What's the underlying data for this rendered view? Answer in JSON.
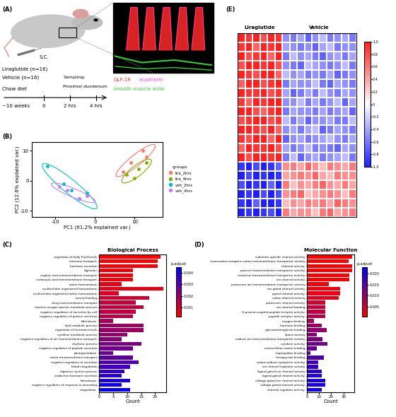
{
  "diagram": {
    "panel": "(A)",
    "route": "S.C.",
    "groups": [
      "Liraglutide (n=16)",
      "Vehicle (n=16)"
    ],
    "diet": "Chow diet",
    "duration": "~10 weeks",
    "timepoints": [
      "0",
      "2 hrs",
      "4 hrs"
    ],
    "sampling": [
      "Sampling:",
      "Proximal duodenum"
    ],
    "stain_legend": [
      {
        "name": "GLP-1R",
        "color": "#ff2a2a"
      },
      {
        "name": "ecadherin",
        "color": "#ff40ff"
      },
      {
        "name": "smooth muscle actin",
        "color": "#33cc33"
      }
    ]
  },
  "chart_data": [
    {
      "panel": "(B)",
      "type": "scatter",
      "xlabel": "PC1 (61.2% explained var.)",
      "ylabel": "PC2 (12.6% explained var.)",
      "xlim": [
        -16,
        17
      ],
      "ylim": [
        -12,
        13
      ],
      "xticks": [
        -10,
        0,
        10
      ],
      "yticks": [
        -10,
        0,
        10
      ],
      "grid": false,
      "legend": "right",
      "legend_title": "groups",
      "marker": "circle",
      "series": [
        {
          "name": "lira_2hrs",
          "color": "#F8766D",
          "x": [
            12,
            7,
            9,
            13
          ],
          "values": [
            10,
            3,
            6,
            8
          ]
        },
        {
          "name": "lira_4hrs",
          "color": "#7CAE00",
          "x": [
            8,
            11,
            13,
            10
          ],
          "values": [
            2,
            4,
            6,
            1
          ]
        },
        {
          "name": "veh_2hrs",
          "color": "#00BFC4",
          "x": [
            -12,
            -8,
            -4,
            -6,
            -2
          ],
          "values": [
            5,
            -1,
            -6,
            -3,
            -4
          ]
        },
        {
          "name": "veh_4hrs",
          "color": "#C77CFF",
          "x": [
            -7,
            -4,
            -2,
            -9
          ],
          "values": [
            -3,
            -6,
            -5,
            -2
          ]
        }
      ]
    },
    {
      "panel": "(C)",
      "type": "bar",
      "orientation": "horizontal",
      "title": "Biological Process",
      "xlabel": "Count",
      "xlim": [
        0,
        24
      ],
      "xticks": [
        0,
        5,
        10,
        15,
        20
      ],
      "categories": [
        "regulation of body fluid levels",
        "hormone transport",
        "hormone secretion",
        "digestion",
        "organic acid transmembrane transport",
        "carboxylic acid transmembrane transport",
        "water homeostasis",
        "multicellular organismal homeostasis",
        "multicellular organismal water homeostasis",
        "wound healing",
        "drug transmembrane transport",
        "reactive oxygen species metabolic process",
        "negative regulation of secretion by cell",
        "negative regulation of protein secretion",
        "fibrinolysis",
        "lipid catabolic process",
        "regulation of hormone levels",
        "cytokine metabolic process",
        "negative regulation of ion transmembrane transport",
        "rhythmic process",
        "negative regulation of peptide secretion",
        "photoperiodism",
        "anion transmembrane transport",
        "negative regulation of secretion",
        "blood coagulation",
        "digestive system process",
        "endocrine hormone secretion",
        "hemostasis",
        "negative regulation of response to wounding",
        "coagulation"
      ],
      "values": [
        22,
        21,
        21,
        12,
        12,
        12,
        8,
        23,
        7,
        18,
        13,
        16,
        13,
        12,
        5,
        16,
        16,
        10,
        8,
        15,
        12,
        5,
        12,
        14,
        11,
        9,
        8,
        11,
        8,
        11
      ],
      "p_adjust": [
        0.0002,
        0.0002,
        0.0003,
        0.0004,
        0.0004,
        0.0004,
        0.0005,
        0.0006,
        0.0008,
        0.001,
        0.0011,
        0.0012,
        0.0013,
        0.0014,
        0.0016,
        0.0018,
        0.0019,
        0.002,
        0.0022,
        0.0024,
        0.0026,
        0.0028,
        0.003,
        0.0032,
        0.0034,
        0.0036,
        0.0038,
        0.004,
        0.0042,
        0.0044
      ],
      "colorbar_title": "p.adjust",
      "color_range": [
        0.0002,
        0.0045
      ],
      "color_ticks": [
        0.001,
        0.002,
        0.003,
        0.004
      ]
    },
    {
      "panel": "(D)",
      "type": "bar",
      "orientation": "horizontal",
      "title": "Molecular Function",
      "xlabel": "Count",
      "xlim": [
        0,
        39
      ],
      "xticks": [
        0,
        10,
        20,
        30
      ],
      "categories": [
        "substrate-specific channel activity",
        "monovalent inorganic cation transmembrane transporter activity",
        "channel activity",
        "passive transmembrane transporter activity",
        "metal ion transmembrane transporter activity",
        "ion channel activity",
        "potassium ion transmembrane transporter activity",
        "ion gated channel activity",
        "gated channel activity",
        "cation channel activity",
        "potassium channel activity",
        "ion channel binding",
        "G-protein-coupled peptide receptor activity",
        "peptide receptor activity",
        "oxygen binding",
        "hormone binding",
        "glycosaminoglycan binding",
        "lipase activity",
        "sodium ion transmembrane transporter activity",
        "cytokine activity",
        "extracellular matrix binding",
        "haptoglobin binding",
        "tetrapyrrole binding",
        "solute:sodium symporter activity",
        "ion channel regulator activity",
        "ligand-gated ion channel activity",
        "ligand-gated channel activity",
        "voltage-gated ion channel activity",
        "voltage-gated channel activity",
        "channel regulator activity"
      ],
      "values": [
        37,
        34,
        37,
        37,
        35,
        35,
        18,
        27,
        27,
        26,
        15,
        15,
        15,
        15,
        6,
        12,
        16,
        8,
        13,
        17,
        8,
        3,
        14,
        9,
        9,
        12,
        12,
        15,
        15,
        12
      ],
      "p_adjust": [
        0.0003,
        0.0003,
        0.0004,
        0.0004,
        0.0005,
        0.0006,
        0.001,
        0.0015,
        0.002,
        0.003,
        0.004,
        0.005,
        0.006,
        0.007,
        0.008,
        0.009,
        0.01,
        0.011,
        0.012,
        0.013,
        0.014,
        0.015,
        0.016,
        0.017,
        0.018,
        0.019,
        0.02,
        0.021,
        0.021,
        0.022
      ],
      "colorbar_title": "p.adjust",
      "color_range": [
        0.0003,
        0.023
      ],
      "color_ticks": [
        0.005,
        {
          "value": 0.01,
          "label": "0.010"
        },
        0.015,
        {
          "value": 0.02,
          "label": "0.020"
        }
      ]
    },
    {
      "panel": "(E)",
      "type": "heatmap",
      "tick_labels": false,
      "column_groups": [
        {
          "name": "Liraglutide",
          "count": 6
        },
        {
          "name": "Vehicle",
          "count": 10
        }
      ],
      "color_range": [
        -1,
        1
      ],
      "color_ticks": [
        {
          "value": 1,
          "label": "1.0"
        },
        0.8,
        0.6,
        0.4,
        0.2,
        0,
        -0.2,
        -0.4,
        -0.6,
        -0.8,
        {
          "value": -1,
          "label": "-1.0"
        }
      ],
      "cells": [
        [
          1.1,
          0.9,
          1.0,
          0.8,
          1.2,
          0.9,
          -0.5,
          -0.6,
          -0.4,
          -0.7,
          -0.5,
          -0.3,
          -0.6,
          -0.5,
          -0.4,
          -0.6
        ],
        [
          0.9,
          1.0,
          0.7,
          1.1,
          0.9,
          1.0,
          -0.4,
          -0.5,
          -0.6,
          -0.5,
          -0.7,
          -0.4,
          -0.3,
          -0.6,
          -0.5,
          -0.5
        ],
        [
          1.0,
          0.8,
          0.9,
          1.0,
          0.7,
          1.1,
          -0.6,
          -0.3,
          -0.5,
          -0.4,
          -0.6,
          -0.7,
          -0.5,
          -0.4,
          -0.6,
          -0.4
        ],
        [
          0.8,
          1.1,
          1.0,
          0.9,
          1.0,
          0.8,
          -0.5,
          -0.6,
          -0.7,
          -0.3,
          -0.4,
          -0.5,
          -0.6,
          -0.5,
          -0.3,
          -0.6
        ],
        [
          1.2,
          0.9,
          0.8,
          1.0,
          1.1,
          0.7,
          -0.3,
          -0.5,
          -0.4,
          -0.6,
          -0.5,
          -0.6,
          -0.4,
          -0.7,
          -0.6,
          -0.5
        ],
        [
          0.7,
          1.0,
          1.1,
          0.8,
          0.9,
          1.0,
          -0.6,
          -0.4,
          -0.5,
          -0.5,
          -0.3,
          -0.6,
          -0.7,
          -0.4,
          -0.5,
          -0.6
        ],
        [
          1.0,
          0.9,
          0.9,
          1.2,
          0.8,
          0.9,
          -0.4,
          -0.7,
          -0.6,
          -0.4,
          -0.6,
          -0.3,
          -0.5,
          -0.6,
          -0.4,
          -0.5
        ],
        [
          0.9,
          0.7,
          1.0,
          0.9,
          1.0,
          1.1,
          -0.5,
          -0.5,
          -0.3,
          -0.6,
          -0.4,
          -0.6,
          -0.5,
          -0.3,
          -0.7,
          -0.4
        ],
        [
          1.1,
          1.0,
          0.8,
          0.7,
          0.9,
          1.0,
          -0.6,
          -0.4,
          -0.5,
          -0.5,
          -0.6,
          -0.4,
          -0.6,
          -0.5,
          -0.4,
          -0.7
        ],
        [
          0.8,
          0.9,
          1.1,
          1.0,
          0.8,
          0.9,
          -0.3,
          -0.6,
          -0.4,
          -0.7,
          -0.5,
          -0.5,
          -0.4,
          -0.6,
          -0.6,
          -0.3
        ],
        [
          1.0,
          1.1,
          0.9,
          0.8,
          1.0,
          0.7,
          -0.5,
          -0.4,
          -0.6,
          -0.4,
          -0.3,
          -0.7,
          -0.6,
          -0.4,
          -0.5,
          -0.6
        ],
        [
          0.9,
          0.8,
          1.0,
          1.1,
          0.7,
          1.0,
          -0.7,
          -0.5,
          -0.4,
          -0.6,
          -0.5,
          -0.4,
          -0.3,
          -0.5,
          -0.6,
          -0.4
        ],
        [
          0.7,
          1.0,
          0.9,
          0.9,
          1.1,
          0.8,
          -0.4,
          -0.6,
          -0.5,
          -0.3,
          -0.6,
          -0.5,
          -0.6,
          -0.7,
          -0.4,
          -0.5
        ],
        [
          1.0,
          0.8,
          1.0,
          1.0,
          0.9,
          1.1,
          -0.6,
          -0.3,
          -0.7,
          -0.5,
          -0.4,
          -0.6,
          -0.5,
          -0.4,
          -0.3,
          -0.6
        ],
        [
          -0.9,
          -1.0,
          -0.8,
          -1.1,
          -0.9,
          -0.7,
          0.5,
          0.6,
          0.4,
          0.7,
          0.5,
          0.3,
          0.6,
          0.5,
          0.4,
          0.6
        ],
        [
          -1.0,
          -0.8,
          -1.1,
          -0.9,
          -1.0,
          -0.9,
          0.4,
          0.5,
          0.6,
          0.5,
          0.7,
          0.4,
          0.3,
          0.6,
          0.5,
          0.5
        ],
        [
          -0.8,
          -1.1,
          -0.9,
          -1.0,
          -0.7,
          -1.0,
          0.6,
          0.3,
          0.5,
          0.4,
          0.6,
          0.7,
          0.5,
          0.4,
          0.6,
          0.4
        ],
        [
          -1.1,
          -0.9,
          -1.0,
          -0.8,
          -1.0,
          -0.8,
          0.5,
          0.6,
          0.7,
          0.3,
          0.4,
          0.5,
          0.6,
          0.5,
          0.3,
          0.6
        ],
        [
          -0.9,
          -1.0,
          -0.7,
          -1.0,
          -1.1,
          -0.9,
          0.3,
          0.5,
          0.4,
          0.6,
          0.5,
          0.6,
          0.4,
          0.7,
          0.6,
          0.5
        ],
        [
          -1.0,
          -0.9,
          -1.0,
          -0.9,
          -0.8,
          -1.1,
          0.6,
          0.4,
          0.5,
          0.5,
          0.3,
          0.6,
          0.7,
          0.4,
          0.5,
          0.6
        ]
      ]
    }
  ]
}
